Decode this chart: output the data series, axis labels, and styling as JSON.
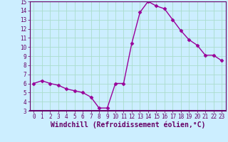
{
  "x": [
    0,
    1,
    2,
    3,
    4,
    5,
    6,
    7,
    8,
    9,
    10,
    11,
    12,
    13,
    14,
    15,
    16,
    17,
    18,
    19,
    20,
    21,
    22,
    23
  ],
  "y": [
    6.0,
    6.3,
    6.0,
    5.8,
    5.4,
    5.2,
    5.0,
    4.5,
    3.3,
    3.3,
    6.0,
    6.0,
    10.4,
    13.8,
    15.0,
    14.5,
    14.2,
    13.0,
    11.8,
    10.8,
    10.2,
    9.1,
    9.1,
    8.5
  ],
  "line_color": "#990099",
  "marker": "D",
  "marker_size": 2.5,
  "xlabel": "Windchill (Refroidissement éolien,°C)",
  "xlim": [
    -0.5,
    23.5
  ],
  "ylim": [
    3,
    15
  ],
  "yticks": [
    3,
    4,
    5,
    6,
    7,
    8,
    9,
    10,
    11,
    12,
    13,
    14,
    15
  ],
  "xticks": [
    0,
    1,
    2,
    3,
    4,
    5,
    6,
    7,
    8,
    9,
    10,
    11,
    12,
    13,
    14,
    15,
    16,
    17,
    18,
    19,
    20,
    21,
    22,
    23
  ],
  "background_color": "#cceeff",
  "grid_color": "#aaddcc",
  "tick_fontsize": 5.5,
  "xlabel_fontsize": 7,
  "linewidth": 1.0
}
